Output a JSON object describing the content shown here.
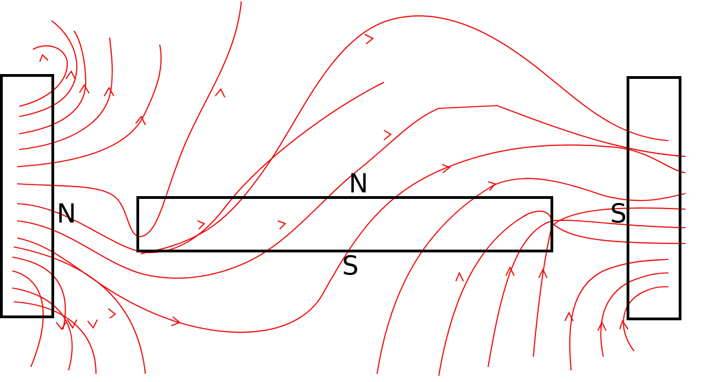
{
  "nodes": [
    {
      "label": "N"
    },
    {
      "label": "N"
    },
    {
      "label": "S"
    },
    {
      "label": "S"
    }
  ]
}
